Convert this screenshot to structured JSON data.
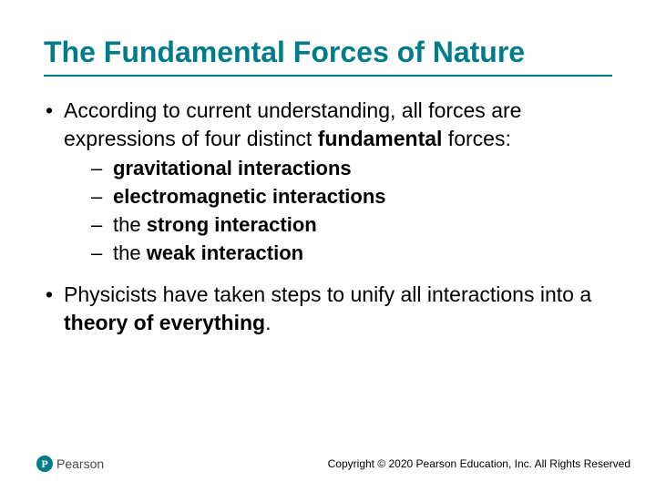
{
  "colors": {
    "accent": "#007b8a",
    "text": "#000000",
    "background": "#ffffff",
    "logo_text": "#4a4a4a"
  },
  "typography": {
    "title_fontsize": 32,
    "body_fontsize": 23,
    "sub_fontsize": 22,
    "footer_fontsize": 12
  },
  "title": "The Fundamental Forces of Nature",
  "bullets": [
    {
      "pre": "According to current understanding, all forces are expressions of four distinct ",
      "bold": "fundamental",
      "post": " forces:",
      "subs": [
        {
          "plain": "",
          "bold": "gravitational interactions",
          "post": ""
        },
        {
          "plain": "",
          "bold": "electromagnetic interactions",
          "post": ""
        },
        {
          "plain": "the ",
          "bold": "strong interaction",
          "post": ""
        },
        {
          "plain": "the ",
          "bold": "weak interaction",
          "post": ""
        }
      ]
    },
    {
      "pre": "Physicists have taken steps to unify all interactions into a ",
      "bold": "theory of everything",
      "post": "."
    }
  ],
  "footer": {
    "logo_letter": "P",
    "logo_name": "Pearson",
    "copyright": "Copyright © 2020 Pearson Education, Inc. All Rights Reserved"
  }
}
